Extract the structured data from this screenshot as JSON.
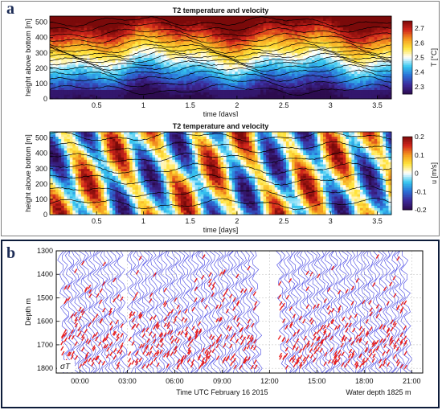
{
  "figure": {
    "panel_a_letter": "a",
    "panel_b_letter": "b"
  },
  "chart_data": [
    {
      "type": "heatmap",
      "title": "T2 temperature and velocity",
      "xlabel": "time [days]",
      "ylabel": "height above bottom [m]",
      "xlim": [
        0,
        3.65
      ],
      "ylim": [
        0,
        540
      ],
      "x_ticks": [
        "0.5",
        "1",
        "1.5",
        "2",
        "2.5",
        "3",
        "3.5"
      ],
      "x_tick_values": [
        0.5,
        1,
        1.5,
        2,
        2.5,
        3,
        3.5
      ],
      "y_ticks": [
        "0",
        "100",
        "200",
        "300",
        "400",
        "500"
      ],
      "y_tick_values": [
        0,
        100,
        200,
        300,
        400,
        500
      ],
      "colorbar": {
        "label": "T [°C]",
        "ticks": [
          "2.7",
          "2.6",
          "2.5",
          "2.4",
          "2.3"
        ],
        "tick_values": [
          2.7,
          2.6,
          2.5,
          2.4,
          2.3
        ],
        "range": [
          2.25,
          2.75
        ],
        "colormap": [
          "#2d0b4f",
          "#3d2a9a",
          "#2a6ed6",
          "#35c7f0",
          "#ffffff",
          "#ffe43b",
          "#f59a1f",
          "#d2261c",
          "#7a0a0a"
        ]
      },
      "isotherm_heights": [
        60,
        110,
        150,
        185,
        215,
        240,
        262,
        285,
        305,
        330,
        360,
        395,
        430,
        470,
        505
      ]
    },
    {
      "type": "heatmap",
      "title": "T2 temperature and velocity",
      "xlabel": "time [days]",
      "ylabel": "height above bottom [m]",
      "xlim": [
        0,
        3.65
      ],
      "ylim": [
        0,
        540
      ],
      "x_ticks": [
        "0.5",
        "1",
        "1.5",
        "2",
        "2.5",
        "3",
        "3.5"
      ],
      "x_tick_values": [
        0.5,
        1,
        1.5,
        2,
        2.5,
        3,
        3.5
      ],
      "y_ticks": [
        "0",
        "100",
        "200",
        "300",
        "400",
        "500"
      ],
      "y_tick_values": [
        0,
        100,
        200,
        300,
        400,
        500
      ],
      "colorbar": {
        "label": "u [m/s]",
        "ticks": [
          "0.2",
          "0.1",
          "0",
          "-0.1",
          "-0.2"
        ],
        "tick_values": [
          0.2,
          0.1,
          0,
          -0.1,
          -0.2
        ],
        "range": [
          -0.2,
          0.2
        ],
        "colormap": [
          "#2d0b4f",
          "#3d2a9a",
          "#2a6ed6",
          "#35c7f0",
          "#ffffff",
          "#ffe43b",
          "#f59a1f",
          "#d2261c",
          "#7a0a0a"
        ]
      },
      "isotherm_heights": [
        70,
        150,
        230,
        300,
        370,
        440,
        510
      ]
    },
    {
      "type": "line",
      "title": "",
      "xlabel": "Time UTC February 16  2015",
      "annotation_right": "Water depth 1825 m",
      "ylabel": "Depth m",
      "xlim": [
        -1.5,
        21.7
      ],
      "ylim": [
        1820,
        1300
      ],
      "x_ticks": [
        "00:00",
        "03:00",
        "06:00",
        "09:00",
        "12:00",
        "15:00",
        "18:00",
        "21:00"
      ],
      "x_tick_values": [
        0,
        3,
        6,
        9,
        12,
        15,
        18,
        21
      ],
      "y_ticks": [
        "1300",
        "1400",
        "1500",
        "1600",
        "1700",
        "1800"
      ],
      "y_tick_values": [
        1300,
        1400,
        1500,
        1600,
        1700,
        1800
      ],
      "inset_label": "σT",
      "series": [
        {
          "profile_color": "#2f2fe0",
          "time_ranges": [
            [
              -1.2,
              2.7
            ],
            [
              3.1,
              11.2
            ],
            [
              12.6,
              20.6
            ]
          ],
          "profile_spacing_hours": 0.22
        },
        {
          "overturn_color": "#e81e1e"
        }
      ]
    }
  ]
}
